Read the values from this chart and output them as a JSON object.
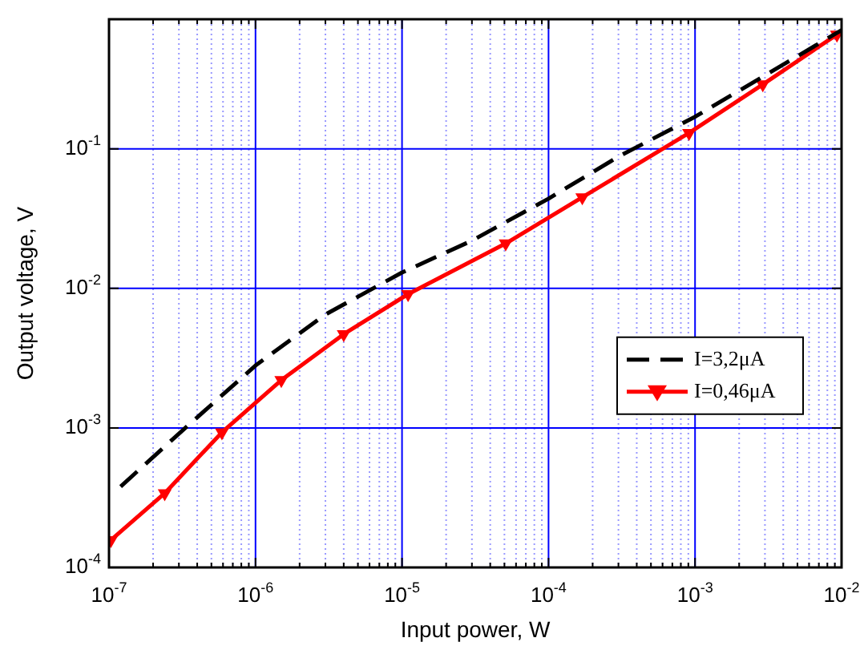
{
  "chart_data": {
    "type": "line",
    "xlabel": "Input power, W",
    "ylabel": "Output voltage, V",
    "log": "xy",
    "xlim": [
      1e-07,
      0.01
    ],
    "ylim": [
      0.0001,
      0.85
    ],
    "xticks": [
      {
        "value": 1e-07,
        "label": "10$^{-7}$"
      },
      {
        "value": 2e-07,
        "label": null
      },
      {
        "value": 3e-07,
        "label": null
      },
      {
        "value": 4e-07,
        "label": null
      },
      {
        "value": 5e-07,
        "label": null
      },
      {
        "value": 6e-07,
        "label": null
      },
      {
        "value": 7e-07,
        "label": null
      },
      {
        "value": 8e-07,
        "label": null
      },
      {
        "value": 9e-07,
        "label": null
      },
      {
        "value": 1e-06,
        "label": "10$^{-6}$"
      },
      {
        "value": 2e-06,
        "label": null
      },
      {
        "value": 3e-06,
        "label": null
      },
      {
        "value": 4e-06,
        "label": null
      },
      {
        "value": 5e-06,
        "label": null
      },
      {
        "value": 6e-06,
        "label": null
      },
      {
        "value": 7e-06,
        "label": null
      },
      {
        "value": 8e-06,
        "label": null
      },
      {
        "value": 9e-06,
        "label": null
      },
      {
        "value": 1e-05,
        "label": "10$^{-5}$"
      },
      {
        "value": 2e-05,
        "label": null
      },
      {
        "value": 3e-05,
        "label": null
      },
      {
        "value": 4e-05,
        "label": null
      },
      {
        "value": 5e-05,
        "label": null
      },
      {
        "value": 6e-05,
        "label": null
      },
      {
        "value": 7e-05,
        "label": null
      },
      {
        "value": 8e-05,
        "label": null
      },
      {
        "value": 9e-05,
        "label": null
      },
      {
        "value": 0.0001,
        "label": "10$^{-4}$"
      },
      {
        "value": 0.0002,
        "label": null
      },
      {
        "value": 0.0003,
        "label": null
      },
      {
        "value": 0.0004,
        "label": null
      },
      {
        "value": 0.0005,
        "label": null
      },
      {
        "value": 0.0006,
        "label": null
      },
      {
        "value": 0.0007,
        "label": null
      },
      {
        "value": 0.0008,
        "label": null
      },
      {
        "value": 0.0009,
        "label": null
      },
      {
        "value": 0.001,
        "label": "10$^{-3}$"
      },
      {
        "value": 0.002,
        "label": null
      },
      {
        "value": 0.003,
        "label": null
      },
      {
        "value": 0.004,
        "label": null
      },
      {
        "value": 0.005,
        "label": null
      },
      {
        "value": 0.006,
        "label": null
      },
      {
        "value": 0.007,
        "label": null
      },
      {
        "value": 0.008,
        "label": null
      },
      {
        "value": 0.009,
        "label": null
      },
      {
        "value": 0.01,
        "label": "10$^{-2}$"
      }
    ],
    "yticks": [
      {
        "value": 0.0001,
        "label": "10$^{-4}$"
      },
      {
        "value": 0.001,
        "label": "10$^{-3}$"
      },
      {
        "value": 0.01,
        "label": "10$^{-2}$"
      },
      {
        "value": 0.1,
        "label": "10$^{-1}$"
      }
    ],
    "grid": true,
    "legend": "right",
    "series": [
      {
        "name": "I=3,2μA",
        "color": "#000000",
        "line_style": "dashed",
        "marker": "none",
        "x": [
          1.2e-07,
          3e-07,
          1e-06,
          3e-06,
          1e-05,
          3e-05,
          0.0001,
          0.0003,
          0.001,
          0.01
        ],
        "values": [
          0.00038,
          0.00091,
          0.0028,
          0.0065,
          0.013,
          0.022,
          0.044,
          0.088,
          0.17,
          0.71
        ]
      },
      {
        "name": "I=0,46μA",
        "color": "#ff0000",
        "line_style": "solid",
        "marker": "triangle",
        "x": [
          1.03e-07,
          2.4e-07,
          5.9e-07,
          1.5e-06,
          4e-06,
          1.1e-05,
          5.1e-05,
          0.00017,
          0.00091,
          0.0029,
          0.0093
        ],
        "values": [
          0.000157,
          0.00034,
          0.00093,
          0.0022,
          0.0047,
          0.0091,
          0.021,
          0.045,
          0.13,
          0.29,
          0.66
        ]
      }
    ]
  }
}
